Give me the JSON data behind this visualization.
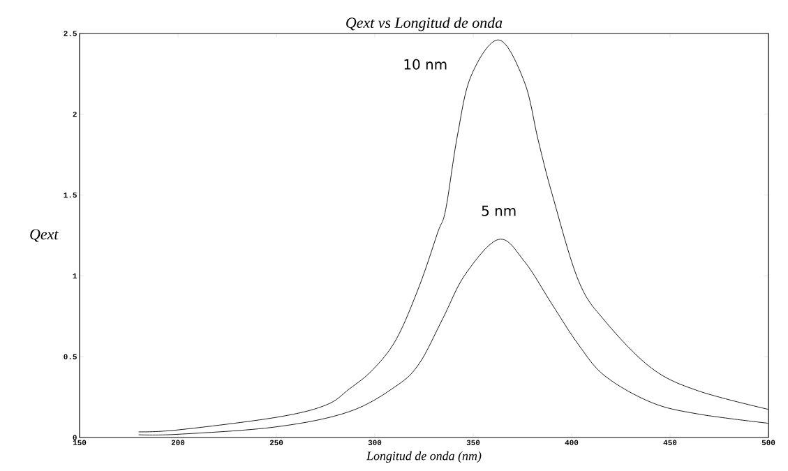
{
  "chart_data": {
    "type": "line",
    "title": "*Qext vs Longitud de onda*",
    "xlabel": "*Longitud de onda (nm)*",
    "ylabel": "*Qext*",
    "xlim": [
      150,
      500
    ],
    "ylim": [
      0,
      2.5
    ],
    "xticks": [
      150,
      200,
      250,
      300,
      350,
      400,
      450,
      500
    ],
    "yticks": [
      0,
      0.5,
      1,
      1.5,
      2,
      2.5
    ],
    "grid": false,
    "legend": false,
    "marker": "none",
    "line_style": "solid",
    "series": [
      {
        "name": "10 nm",
        "color": "#000000",
        "x": [
          180,
          200,
          250,
          275,
          287,
          299,
          311,
          322.7,
          332,
          336,
          342,
          349,
          363,
          376,
          383,
          390,
          403.5,
          417,
          440.5,
          464,
          500
        ],
        "values": [
          0.035,
          0.047,
          0.125,
          0.2,
          0.3,
          0.42,
          0.61,
          0.94,
          1.27,
          1.41,
          1.87,
          2.24,
          2.46,
          2.2,
          1.84,
          1.51,
          0.97,
          0.72,
          0.43,
          0.29,
          0.174
        ]
      },
      {
        "name": "5 nm",
        "color": "#000000",
        "x": [
          180,
          200,
          250,
          287,
          311,
          322.7,
          334.5,
          346,
          363,
          376,
          390,
          403.5,
          417,
          440.5,
          464,
          500
        ],
        "values": [
          0.017,
          0.02,
          0.066,
          0.16,
          0.32,
          0.46,
          0.735,
          1.01,
          1.226,
          1.09,
          0.825,
          0.574,
          0.38,
          0.217,
          0.146,
          0.088
        ]
      }
    ]
  }
}
